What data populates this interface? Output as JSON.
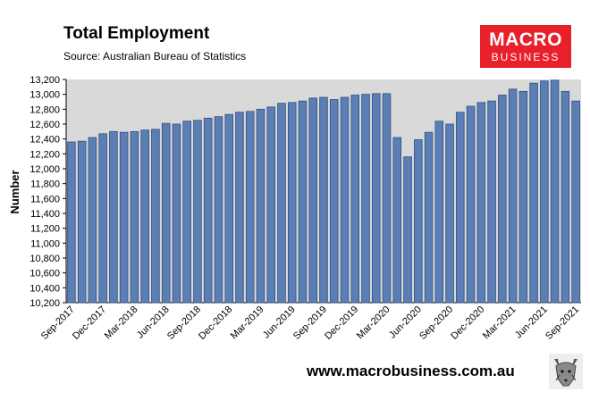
{
  "header": {
    "title": "Total Employment",
    "subtitle": "Source: Australian Bureau of Statistics"
  },
  "logo": {
    "line1": "MACRO",
    "line2": "BUSINESS",
    "color": "#e8202a"
  },
  "footer": {
    "url": "www.macrobusiness.com.au",
    "icon": "wolf-icon"
  },
  "colors": {
    "bar_fill": "#5b7fb5",
    "bar_stroke": "#2f4f7f",
    "plot_bg": "#d9d9d9"
  },
  "chart_data": {
    "type": "bar",
    "ylabel": "Number",
    "xlabel": "",
    "ylim": [
      10200,
      13200
    ],
    "yticks": [
      10200,
      10400,
      10600,
      10800,
      11000,
      11200,
      11400,
      11600,
      11800,
      12000,
      12200,
      12400,
      12600,
      12800,
      13000,
      13200
    ],
    "ytick_labels": [
      "10,200",
      "10,400",
      "10,600",
      "10,800",
      "11,000",
      "11,200",
      "11,400",
      "11,600",
      "11,800",
      "12,000",
      "12,200",
      "12,400",
      "12,600",
      "12,800",
      "13,000",
      "13,200"
    ],
    "grid": false,
    "categories": [
      "Sep-2017",
      "Oct-2017",
      "Nov-2017",
      "Dec-2017",
      "Jan-2018",
      "Feb-2018",
      "Mar-2018",
      "Apr-2018",
      "May-2018",
      "Jun-2018",
      "Jul-2018",
      "Aug-2018",
      "Sep-2018",
      "Oct-2018",
      "Nov-2018",
      "Dec-2018",
      "Jan-2019",
      "Feb-2019",
      "Mar-2019",
      "Apr-2019",
      "May-2019",
      "Jun-2019",
      "Jul-2019",
      "Aug-2019",
      "Sep-2019",
      "Oct-2019",
      "Nov-2019",
      "Dec-2019",
      "Jan-2020",
      "Feb-2020",
      "Mar-2020",
      "Apr-2020",
      "May-2020",
      "Jun-2020",
      "Jul-2020",
      "Aug-2020",
      "Sep-2020",
      "Oct-2020",
      "Nov-2020",
      "Dec-2020",
      "Jan-2021",
      "Feb-2021",
      "Mar-2021",
      "Apr-2021",
      "May-2021",
      "Jun-2021",
      "Jul-2021",
      "Aug-2021",
      "Sep-2021"
    ],
    "tick_labels": [
      "Sep-2017",
      "Dec-2017",
      "Mar-2018",
      "Jun-2018",
      "Sep-2018",
      "Dec-2018",
      "Mar-2019",
      "Jun-2019",
      "Sep-2019",
      "Dec-2019",
      "Mar-2020",
      "Jun-2020",
      "Sep-2020",
      "Dec-2020",
      "Mar-2021",
      "Jun-2021",
      "Sep-2021"
    ],
    "values": [
      12360,
      12370,
      12420,
      12470,
      12500,
      12490,
      12500,
      12520,
      12530,
      12610,
      12600,
      12640,
      12650,
      12680,
      12700,
      12730,
      12760,
      12770,
      12800,
      12830,
      12880,
      12890,
      12910,
      12950,
      12960,
      12930,
      12960,
      12990,
      13000,
      13010,
      13010,
      12420,
      12160,
      12390,
      12490,
      12640,
      12600,
      12760,
      12840,
      12890,
      12910,
      12990,
      13070,
      13040,
      13150,
      13180,
      13190,
      13040,
      12910
    ]
  }
}
